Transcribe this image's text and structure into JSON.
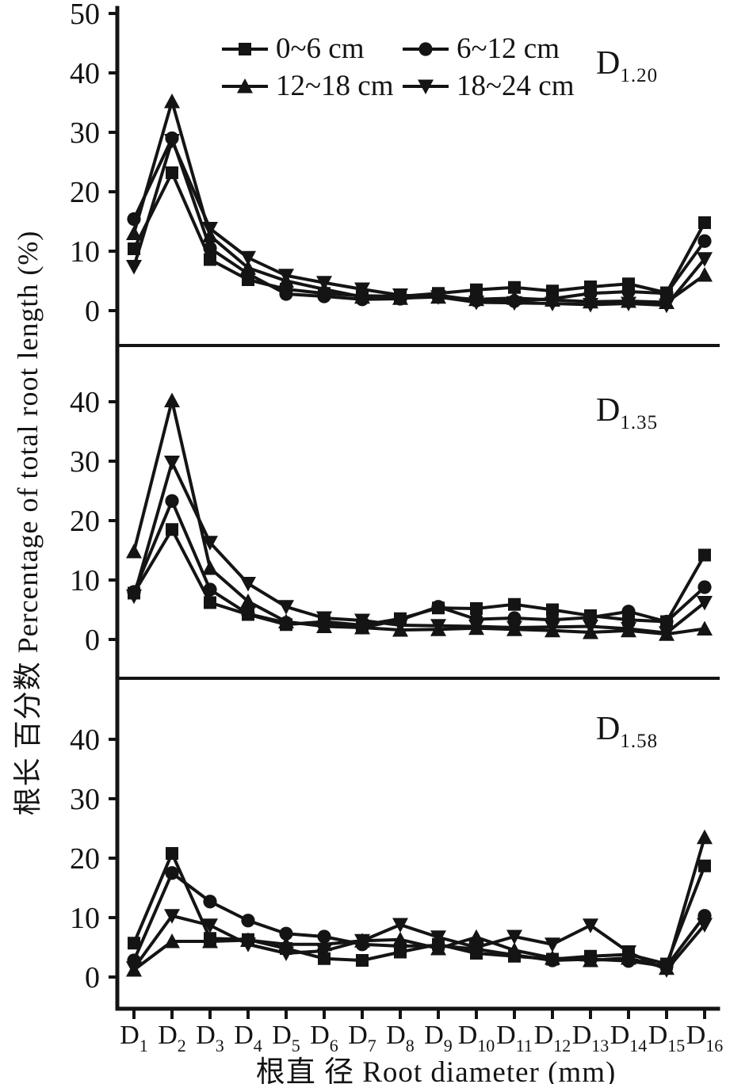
{
  "figure": {
    "y_axis_label": "根长 百分数 Percentage of total root length (%)",
    "x_axis_label": "根直 径 Root diameter (mm)",
    "x_category_base": "D"
  },
  "legend": {
    "items": [
      {
        "marker": "square",
        "label": "0~6 cm"
      },
      {
        "marker": "circle",
        "label": "6~12 cm"
      },
      {
        "marker": "triangle-up",
        "label": "12~18 cm"
      },
      {
        "marker": "triangle-down",
        "label": "18~24 cm"
      }
    ]
  },
  "chart_data": [
    {
      "type": "line",
      "panel_label": {
        "base": "D",
        "sub": "1.20"
      },
      "categories": [
        "D1",
        "D2",
        "D3",
        "D4",
        "D5",
        "D6",
        "D7",
        "D8",
        "D9",
        "D10",
        "D11",
        "D12",
        "D13",
        "D14",
        "D15",
        "D16"
      ],
      "category_subs": [
        "1",
        "2",
        "3",
        "4",
        "5",
        "6",
        "7",
        "8",
        "9",
        "10",
        "11",
        "12",
        "13",
        "14",
        "15",
        "16"
      ],
      "ylim": [
        0,
        50
      ],
      "yticks": [
        0,
        10,
        20,
        30,
        40,
        50
      ],
      "xlabel": "根直 径 Root diameter (mm)",
      "ylabel": "根长 百分数 Percentage of total root length (%)",
      "legend_position": "top-inside",
      "grid": false,
      "series": [
        {
          "name": "0~6 cm",
          "marker": "square",
          "values": [
            10.4,
            23.2,
            8.6,
            5.2,
            3.6,
            2.9,
            2.5,
            2.4,
            2.9,
            3.5,
            3.9,
            3.3,
            4.0,
            4.5,
            3.0,
            14.8
          ]
        },
        {
          "name": "6~12 cm",
          "marker": "circle",
          "values": [
            15.4,
            29.0,
            10.5,
            6.2,
            2.8,
            2.4,
            1.9,
            2.0,
            2.6,
            1.7,
            1.6,
            2.0,
            2.9,
            3.2,
            2.9,
            11.7
          ]
        },
        {
          "name": "12~18 cm",
          "marker": "triangle-up",
          "values": [
            13.0,
            35.2,
            12.6,
            7.2,
            5.0,
            3.6,
            2.3,
            2.1,
            2.3,
            1.9,
            2.1,
            1.8,
            1.5,
            1.6,
            1.4,
            6.0
          ]
        },
        {
          "name": "18~24 cm",
          "marker": "triangle-down",
          "values": [
            7.4,
            28.6,
            13.8,
            8.9,
            5.9,
            4.7,
            3.6,
            2.6,
            2.3,
            1.4,
            1.3,
            1.2,
            1.0,
            1.2,
            0.9,
            8.7
          ]
        }
      ]
    },
    {
      "type": "line",
      "panel_label": {
        "base": "D",
        "sub": "1.35"
      },
      "categories": [
        "D1",
        "D2",
        "D3",
        "D4",
        "D5",
        "D6",
        "D7",
        "D8",
        "D9",
        "D10",
        "D11",
        "D12",
        "D13",
        "D14",
        "D15",
        "D16"
      ],
      "category_subs": [
        "1",
        "2",
        "3",
        "4",
        "5",
        "6",
        "7",
        "8",
        "9",
        "10",
        "11",
        "12",
        "13",
        "14",
        "15",
        "16"
      ],
      "ylim": [
        0,
        45
      ],
      "yticks": [
        0,
        10,
        20,
        30,
        40
      ],
      "grid": false,
      "series": [
        {
          "name": "0~6 cm",
          "marker": "square",
          "values": [
            7.8,
            18.5,
            6.2,
            4.2,
            2.5,
            3.0,
            2.4,
            3.5,
            5.3,
            5.2,
            5.9,
            5.0,
            4.0,
            3.3,
            3.0,
            14.2
          ]
        },
        {
          "name": "6~12 cm",
          "marker": "circle",
          "values": [
            8.0,
            23.3,
            8.4,
            4.3,
            2.8,
            2.5,
            2.0,
            3.3,
            5.5,
            3.4,
            3.6,
            3.3,
            3.7,
            4.7,
            3.0,
            8.8
          ]
        },
        {
          "name": "12~18 cm",
          "marker": "triangle-up",
          "values": [
            14.8,
            40.2,
            12.0,
            6.4,
            3.0,
            2.2,
            2.0,
            1.6,
            1.7,
            1.9,
            1.7,
            1.5,
            1.2,
            1.5,
            0.9,
            1.8
          ]
        },
        {
          "name": "18~24 cm",
          "marker": "triangle-down",
          "values": [
            7.3,
            29.8,
            16.3,
            9.4,
            5.5,
            3.6,
            3.2,
            2.4,
            2.3,
            2.2,
            2.0,
            2.1,
            2.2,
            1.8,
            1.1,
            6.2
          ]
        }
      ]
    },
    {
      "type": "line",
      "panel_label": {
        "base": "D",
        "sub": "1.58"
      },
      "categories": [
        "D1",
        "D2",
        "D3",
        "D4",
        "D5",
        "D6",
        "D7",
        "D8",
        "D9",
        "D10",
        "D11",
        "D12",
        "D13",
        "D14",
        "D15",
        "D16"
      ],
      "category_subs": [
        "1",
        "2",
        "3",
        "4",
        "5",
        "6",
        "7",
        "8",
        "9",
        "10",
        "11",
        "12",
        "13",
        "14",
        "15",
        "16"
      ],
      "ylim": [
        0,
        45
      ],
      "yticks": [
        0,
        10,
        20,
        30,
        40
      ],
      "grid": false,
      "series": [
        {
          "name": "0~6 cm",
          "marker": "square",
          "values": [
            5.7,
            20.8,
            6.5,
            6.3,
            4.8,
            3.1,
            2.8,
            4.2,
            5.5,
            4.0,
            3.5,
            3.0,
            3.5,
            3.8,
            2.2,
            18.7
          ]
        },
        {
          "name": "6~12 cm",
          "marker": "circle",
          "values": [
            2.8,
            17.5,
            12.7,
            9.5,
            7.3,
            6.8,
            5.5,
            5.2,
            5.3,
            4.7,
            3.7,
            2.8,
            3.0,
            2.7,
            1.8,
            10.3
          ]
        },
        {
          "name": "12~18 cm",
          "marker": "triangle-up",
          "values": [
            1.2,
            6.0,
            6.0,
            6.2,
            5.5,
            5.5,
            6.1,
            6.3,
            4.8,
            6.7,
            4.5,
            3.2,
            2.8,
            3.2,
            1.5,
            23.5
          ]
        },
        {
          "name": "18~24 cm",
          "marker": "triangle-down",
          "values": [
            1.5,
            10.3,
            8.7,
            5.5,
            4.0,
            4.4,
            6.1,
            8.8,
            6.7,
            5.0,
            6.8,
            5.5,
            8.7,
            4.2,
            1.2,
            8.8
          ]
        }
      ]
    }
  ]
}
